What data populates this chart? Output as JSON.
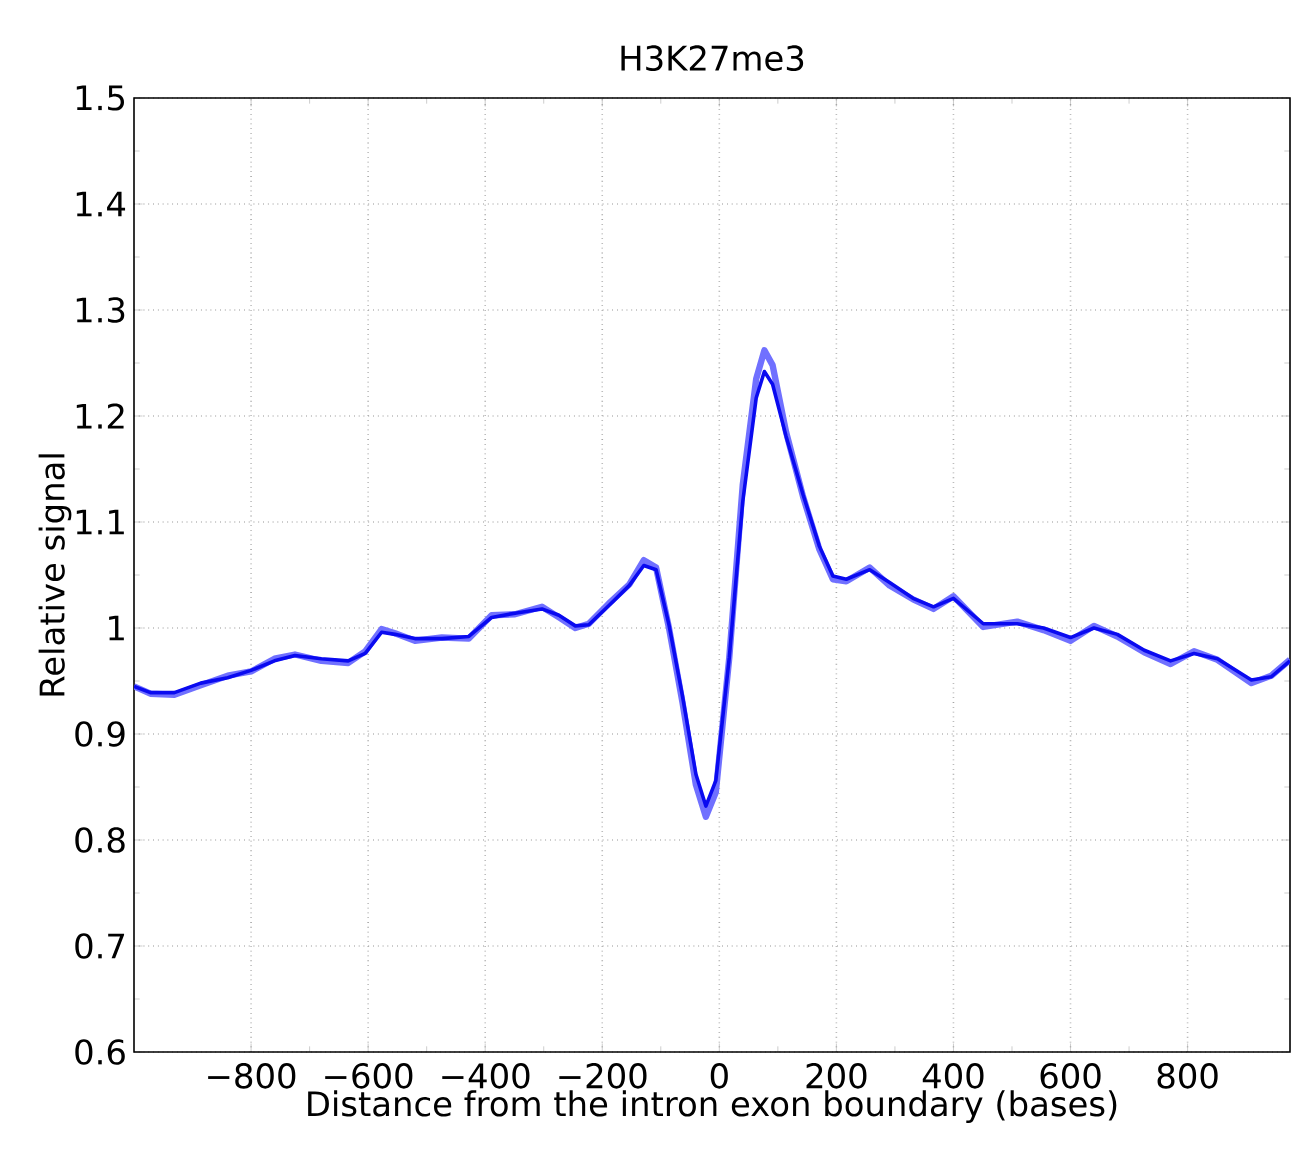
{
  "chart_data": {
    "type": "line",
    "title": "H3K27me3",
    "xlabel": "Distance from the intron exon boundary (bases)",
    "ylabel": "Relative signal",
    "xlim": [
      -1000,
      975
    ],
    "ylim": [
      0.6,
      1.5
    ],
    "xticks": [
      {
        "value": -800,
        "label": "−800"
      },
      {
        "value": -600,
        "label": "−600"
      },
      {
        "value": -400,
        "label": "−400"
      },
      {
        "value": -200,
        "label": "−200"
      },
      0,
      200,
      400,
      600,
      800
    ],
    "yticks": [
      0.6,
      0.7,
      0.8,
      0.9,
      1,
      1.1,
      1.2,
      1.3,
      1.4,
      1.5
    ],
    "grid": true,
    "marker": "none",
    "line_style": "solid",
    "series": [
      {
        "color": "#7070ff",
        "x": [
          -1000,
          -972,
          -931,
          -886,
          -840,
          -800,
          -760,
          -725,
          -680,
          -634,
          -605,
          -577,
          -554,
          -520,
          -474,
          -428,
          -389,
          -349,
          -303,
          -274,
          -246,
          -223,
          -189,
          -154,
          -129,
          -108,
          -86,
          -63,
          -40,
          -23,
          -6,
          17,
          40,
          63,
          77,
          91,
          114,
          143,
          171,
          194,
          217,
          257,
          291,
          331,
          366,
          400,
          451,
          509,
          554,
          600,
          640,
          680,
          726,
          771,
          811,
          851,
          909,
          943,
          975
        ],
        "values": [
          0.945,
          0.938,
          0.937,
          0.946,
          0.955,
          0.959,
          0.971,
          0.975,
          0.969,
          0.967,
          0.978,
          0.999,
          0.995,
          0.988,
          0.991,
          0.99,
          1.012,
          1.013,
          1.02,
          1.01,
          1.0,
          1.004,
          1.023,
          1.041,
          1.064,
          1.057,
          1.0,
          0.93,
          0.852,
          0.822,
          0.845,
          0.972,
          1.135,
          1.235,
          1.262,
          1.248,
          1.185,
          1.124,
          1.074,
          1.046,
          1.044,
          1.057,
          1.04,
          1.027,
          1.018,
          1.03,
          1.001,
          1.006,
          0.998,
          0.988,
          1.002,
          0.992,
          0.977,
          0.966,
          0.978,
          0.97,
          0.948,
          0.955,
          0.97
        ]
      },
      {
        "color": "#0a0af0",
        "x": [
          -1000,
          -972,
          -931,
          -886,
          -840,
          -800,
          -760,
          -725,
          -680,
          -634,
          -605,
          -577,
          -554,
          -520,
          -474,
          -428,
          -389,
          -349,
          -303,
          -274,
          -246,
          -223,
          -189,
          -154,
          -129,
          -108,
          -86,
          -63,
          -40,
          -23,
          -6,
          17,
          40,
          63,
          77,
          91,
          114,
          143,
          171,
          194,
          217,
          257,
          291,
          331,
          366,
          400,
          451,
          509,
          554,
          600,
          640,
          680,
          726,
          771,
          811,
          851,
          909,
          943,
          975
        ],
        "values": [
          0.945,
          0.939,
          0.939,
          0.948,
          0.953,
          0.96,
          0.969,
          0.974,
          0.971,
          0.969,
          0.976,
          0.996,
          0.994,
          0.99,
          0.99,
          0.992,
          1.01,
          1.014,
          1.018,
          1.012,
          1.002,
          1.003,
          1.021,
          1.04,
          1.059,
          1.055,
          1.003,
          0.936,
          0.862,
          0.832,
          0.856,
          0.972,
          1.119,
          1.217,
          1.242,
          1.23,
          1.181,
          1.126,
          1.077,
          1.049,
          1.046,
          1.055,
          1.043,
          1.028,
          1.02,
          1.028,
          1.004,
          1.004,
          1.0,
          0.991,
          1.0,
          0.994,
          0.979,
          0.969,
          0.976,
          0.971,
          0.951,
          0.954,
          0.969
        ]
      }
    ]
  }
}
